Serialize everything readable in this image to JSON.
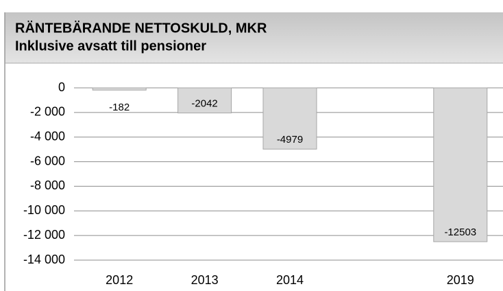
{
  "chart_data": {
    "type": "bar",
    "title": "RÄNTEBÄRANDE NETTOSKULD, MKR",
    "subtitle": "Inklusive avsatt till pensioner",
    "categories": [
      "2012",
      "2013",
      "2014",
      null,
      "2019"
    ],
    "values": [
      -182,
      -2042,
      -4979,
      null,
      -12503
    ],
    "color": "#d9d9d9",
    "ylim": [
      -14000,
      0
    ],
    "yticks": [
      0,
      {
        "value": -2000,
        "label": "-2 000"
      },
      {
        "value": -4000,
        "label": "-4 000"
      },
      {
        "value": -6000,
        "label": "-6 000"
      },
      {
        "value": -8000,
        "label": "-8 000"
      },
      {
        "value": -10000,
        "label": "-10 000"
      },
      {
        "value": -12000,
        "label": "-12 000"
      },
      {
        "value": -14000,
        "label": "-14 000"
      }
    ],
    "grid": true
  }
}
